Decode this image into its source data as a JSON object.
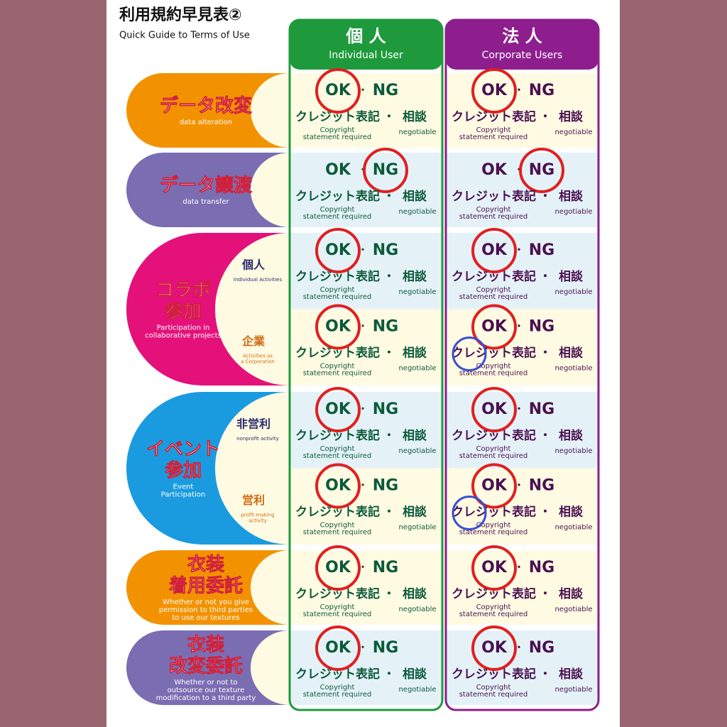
{
  "title": "利用規約早見表②",
  "subtitle": "Quick Guide to Terms of Use",
  "columns": [
    {
      "label": "個 人",
      "label_en": "Individual User",
      "color": "#1e9a3c",
      "text_color": "#0b5a3a"
    },
    {
      "label": "法 人",
      "label_en": "Corporate Users",
      "color": "#8e1e8e",
      "text_color": "#4a1050"
    }
  ],
  "cell_text": {
    "ok": "OK",
    "ng": "NG",
    "credit": "クレジット表記",
    "dot": "・",
    "consult": "相談",
    "credit_en": [
      "Copyright",
      "statement required"
    ],
    "consult_en": "negotiable"
  },
  "rows": [
    {
      "label": [
        "データ改変"
      ],
      "label_en": [
        "data alteration"
      ],
      "color": "#f39200",
      "cells": [
        {
          "circle": "ok",
          "bg": "#fffbe3"
        },
        {
          "circle": "ok",
          "bg": "#fffbe3"
        }
      ]
    },
    {
      "label": [
        "データ譲渡"
      ],
      "label_en": [
        "data transfer"
      ],
      "color": "#7a6db2",
      "cells": [
        {
          "circle": "ng",
          "bg": "#e4f2f8"
        },
        {
          "circle": "ng",
          "bg": "#e4f2f8"
        }
      ]
    },
    {
      "label": [
        "コラボ",
        "参加"
      ],
      "label_en": [
        "Participation in",
        "collaborative projects"
      ],
      "color": "#e4117a",
      "subs": [
        {
          "label": "個人",
          "label_en": [
            "Individual Activities"
          ],
          "cells": [
            {
              "circle": "ok",
              "bg": "#e4f2f8"
            },
            {
              "circle": "ok",
              "bg": "#e4f2f8"
            }
          ]
        },
        {
          "label": "企業",
          "label_en": [
            "Activities as",
            "a Corporation"
          ],
          "cells": [
            {
              "circle": "ok",
              "bg": "#fffbe3"
            },
            {
              "circle": "ok",
              "bg": "#fffbe3",
              "credit_circle": true
            }
          ]
        }
      ]
    },
    {
      "label": [
        "イベント",
        "参加"
      ],
      "label_en": [
        "Event",
        "Participation"
      ],
      "color": "#1a9be0",
      "subs": [
        {
          "label": "非営利",
          "label_en": [
            "nonprofit activity"
          ],
          "cells": [
            {
              "circle": "ok",
              "bg": "#e4f2f8"
            },
            {
              "circle": "ok",
              "bg": "#e4f2f8"
            }
          ]
        },
        {
          "label": "営利",
          "label_en": [
            "profit-making",
            "activity"
          ],
          "cells": [
            {
              "circle": "ok",
              "bg": "#fffbe3"
            },
            {
              "circle": "ok",
              "bg": "#fffbe3",
              "credit_circle": true
            }
          ]
        }
      ]
    },
    {
      "label": [
        "衣装",
        "着用委託"
      ],
      "label_en": [
        "Whether or not you give",
        "permission to third parties",
        "to use our textures"
      ],
      "color": "#f39200",
      "cells": [
        {
          "circle": "ok",
          "bg": "#fffbe3"
        },
        {
          "circle": "ok",
          "bg": "#fffbe3"
        }
      ]
    },
    {
      "label": [
        "衣装",
        "改変委託"
      ],
      "label_en": [
        "Whether or not to",
        "outsource our texture",
        "modification to a third party"
      ],
      "color": "#7a6db2",
      "cells": [
        {
          "circle": "ok",
          "bg": "#e4f2f8"
        },
        {
          "circle": "ok",
          "bg": "#e4f2f8"
        }
      ]
    }
  ]
}
